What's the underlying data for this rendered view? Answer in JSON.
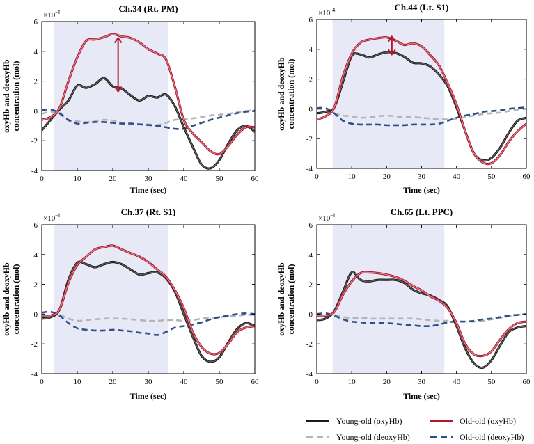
{
  "figure": {
    "legend": [
      {
        "label": "Young-old (oxyHb)",
        "color": "#1a1a1a",
        "dash": "solid"
      },
      {
        "label": "Old-old (oxyHb)",
        "color": "#b0182b",
        "dash": "solid"
      },
      {
        "label": "Young-old (deoxyHb)",
        "color": "#b4b4b4",
        "dash": "dashed"
      },
      {
        "label": "Old-old (deoxyHb)",
        "color": "#2e4f8a",
        "dash": "dashed"
      }
    ],
    "colors": {
      "shade": "#e8e9f6",
      "oxyYoung": "#1a1a1a",
      "oxyYoungInner": "#666666",
      "oxyOld": "#b0182b",
      "oxyOldInner": "#d8899a",
      "deoxyYoung": "#b4b4b4",
      "deoxyOld": "#2e4f8a",
      "arrow": "#b0182b"
    }
  },
  "chart_data": [
    {
      "type": "line",
      "title": "Ch.34 (Rt. PM)",
      "xlabel": "Time (sec)",
      "ylabel": "oxyHb and deoxyHb concentration (mol)",
      "exponent": "×10",
      "exponent_power": "-4",
      "xlim": [
        0,
        60
      ],
      "ylim": [
        -4,
        6
      ],
      "xticks": [
        0,
        10,
        20,
        30,
        40,
        50,
        60
      ],
      "yticks": [
        -4,
        -2,
        0,
        2,
        4,
        6
      ],
      "shaded_interval": [
        3.5,
        35.5
      ],
      "arrow": {
        "x": 21.5,
        "y_from": 1.3,
        "y_to": 4.9
      },
      "x": [
        0,
        2.5,
        5,
        7.5,
        10,
        12.5,
        15,
        17.5,
        20,
        22.5,
        25,
        27.5,
        30,
        32.5,
        35,
        37.5,
        40,
        42.5,
        45,
        47.5,
        50,
        52.5,
        55,
        57.5,
        60
      ],
      "series": [
        {
          "name": "Young-old (oxyHb)",
          "values": [
            -1.3,
            -0.6,
            0.1,
            0.7,
            1.7,
            1.55,
            1.8,
            2.2,
            1.65,
            1.5,
            1.05,
            0.7,
            1.0,
            0.9,
            1.1,
            0.3,
            -1.1,
            -2.4,
            -3.6,
            -3.85,
            -3.3,
            -2.2,
            -1.3,
            -1.0,
            -1.4
          ]
        },
        {
          "name": "Old-old (oxyHb)",
          "values": [
            -0.6,
            -0.4,
            0.2,
            2.0,
            3.6,
            4.7,
            4.8,
            4.95,
            5.15,
            5.0,
            4.9,
            4.6,
            4.15,
            3.85,
            3.45,
            1.6,
            -0.6,
            -1.5,
            -2.1,
            -2.7,
            -2.9,
            -2.35,
            -1.6,
            -1.1,
            -1.1
          ]
        },
        {
          "name": "Young-old (deoxyHb)",
          "values": [
            -0.2,
            -0.05,
            -0.2,
            -0.65,
            -0.7,
            -0.75,
            -0.7,
            -0.6,
            -0.65,
            -0.8,
            -0.85,
            -0.9,
            -0.9,
            -0.95,
            -0.8,
            -0.6,
            -0.55,
            -0.5,
            -0.4,
            -0.3,
            -0.25,
            -0.2,
            -0.1,
            0.0,
            0.05
          ]
        },
        {
          "name": "Old-old (deoxyHb)",
          "values": [
            0.05,
            0.1,
            -0.15,
            -0.6,
            -0.85,
            -0.8,
            -0.75,
            -0.75,
            -0.8,
            -0.85,
            -0.85,
            -0.9,
            -0.95,
            -1.0,
            -1.1,
            -1.2,
            -1.2,
            -1.0,
            -0.8,
            -0.6,
            -0.45,
            -0.3,
            -0.15,
            -0.05,
            0.0
          ]
        }
      ]
    },
    {
      "type": "line",
      "title": "Ch.44 (Lt. S1)",
      "xlabel": "Time (sec)",
      "ylabel": "oxyHb and deoxyHb concentration (mol)",
      "exponent": "×10",
      "exponent_power": "-4",
      "xlim": [
        0,
        60
      ],
      "ylim": [
        -4,
        6
      ],
      "xticks": [
        0,
        10,
        20,
        30,
        40,
        50,
        60
      ],
      "yticks": [
        -4,
        -2,
        0,
        2,
        4,
        6
      ],
      "shaded_interval": [
        4.5,
        36.5
      ],
      "arrow": {
        "x": 21.5,
        "y_from": 3.65,
        "y_to": 4.85
      },
      "x": [
        0,
        2.5,
        5,
        7.5,
        10,
        12.5,
        15,
        17.5,
        20,
        22.5,
        25,
        27.5,
        30,
        32.5,
        35,
        37.5,
        40,
        42.5,
        45,
        47.5,
        50,
        52.5,
        55,
        57.5,
        60
      ],
      "series": [
        {
          "name": "Young-old (oxyHb)",
          "values": [
            -0.3,
            -0.2,
            0.1,
            1.8,
            3.55,
            3.65,
            3.45,
            3.65,
            3.8,
            3.75,
            3.5,
            3.1,
            3.05,
            2.85,
            2.3,
            1.5,
            0.1,
            -1.5,
            -3.0,
            -3.45,
            -3.3,
            -2.6,
            -1.6,
            -0.8,
            -0.6
          ]
        },
        {
          "name": "Old-old (oxyHb)",
          "values": [
            -0.7,
            -0.5,
            0.1,
            2.2,
            3.7,
            4.45,
            4.65,
            4.75,
            4.8,
            4.6,
            4.3,
            4.4,
            4.2,
            3.6,
            2.9,
            1.7,
            0.3,
            -1.5,
            -3.0,
            -3.6,
            -3.65,
            -3.1,
            -2.2,
            -1.5,
            -1.0
          ]
        },
        {
          "name": "Young-old (deoxyHb)",
          "values": [
            0.0,
            -0.05,
            -0.3,
            -0.45,
            -0.5,
            -0.6,
            -0.55,
            -0.5,
            -0.45,
            -0.5,
            -0.55,
            -0.55,
            -0.6,
            -0.65,
            -0.7,
            -0.7,
            -0.65,
            -0.55,
            -0.45,
            -0.35,
            -0.3,
            -0.25,
            -0.15,
            -0.05,
            0.0
          ]
        },
        {
          "name": "Old-old (deoxyHb)",
          "values": [
            0.05,
            0.05,
            -0.3,
            -0.8,
            -1.0,
            -1.05,
            -1.05,
            -1.05,
            -1.1,
            -1.1,
            -1.1,
            -1.05,
            -1.05,
            -1.05,
            -1.0,
            -0.8,
            -0.6,
            -0.45,
            -0.35,
            -0.2,
            -0.15,
            -0.1,
            0.0,
            0.05,
            0.1
          ]
        }
      ]
    },
    {
      "type": "line",
      "title": "Ch.37 (Rt. S1)",
      "xlabel": "Time (sec)",
      "ylabel": "oxyHb and deoxyHb concentration (mol)",
      "exponent": "×10",
      "exponent_power": "-4",
      "xlim": [
        0,
        60
      ],
      "ylim": [
        -4,
        6
      ],
      "xticks": [
        0,
        10,
        20,
        30,
        40,
        50,
        60
      ],
      "yticks": [
        -4,
        -2,
        0,
        2,
        4,
        6
      ],
      "shaded_interval": [
        3.5,
        35.5
      ],
      "x": [
        0,
        2.5,
        5,
        7.5,
        10,
        12.5,
        15,
        17.5,
        20,
        22.5,
        25,
        27.5,
        30,
        32.5,
        35,
        37.5,
        40,
        42.5,
        45,
        47.5,
        50,
        52.5,
        55,
        57.5,
        60
      ],
      "series": [
        {
          "name": "Young-old (oxyHb)",
          "values": [
            -0.3,
            -0.2,
            0.3,
            2.3,
            3.45,
            3.35,
            3.15,
            3.35,
            3.5,
            3.35,
            3.0,
            2.65,
            2.75,
            2.8,
            2.4,
            1.5,
            0.0,
            -1.5,
            -2.8,
            -3.2,
            -2.9,
            -1.9,
            -1.0,
            -0.6,
            -0.8
          ]
        },
        {
          "name": "Old-old (oxyHb)",
          "values": [
            -0.1,
            -0.1,
            0.3,
            2.1,
            3.3,
            3.85,
            4.35,
            4.5,
            4.6,
            4.35,
            4.1,
            3.85,
            3.5,
            3.0,
            2.5,
            1.6,
            0.4,
            -1.2,
            -2.2,
            -2.65,
            -2.6,
            -2.0,
            -1.2,
            -0.9,
            -0.8
          ]
        },
        {
          "name": "Young-old (deoxyHb)",
          "values": [
            -0.1,
            -0.1,
            -0.05,
            -0.3,
            -0.45,
            -0.4,
            -0.35,
            -0.3,
            -0.3,
            -0.3,
            -0.35,
            -0.4,
            -0.45,
            -0.45,
            -0.4,
            -0.4,
            -0.45,
            -0.4,
            -0.3,
            -0.25,
            -0.2,
            -0.15,
            -0.1,
            -0.05,
            -0.05
          ]
        },
        {
          "name": "Old-old (deoxyHb)",
          "values": [
            0.1,
            0.15,
            -0.1,
            -0.6,
            -0.95,
            -1.05,
            -1.1,
            -1.1,
            -1.05,
            -1.1,
            -1.15,
            -1.25,
            -1.3,
            -1.4,
            -1.2,
            -0.9,
            -0.8,
            -0.7,
            -0.55,
            -0.35,
            -0.2,
            -0.1,
            0.0,
            0.05,
            0.0
          ]
        }
      ]
    },
    {
      "type": "line",
      "title": "Ch.65 (Lt. PPC)",
      "xlabel": "Time (sec)",
      "ylabel": "oxyHb and deoxyHb concentration (mol)",
      "exponent": "×10",
      "exponent_power": "-4",
      "xlim": [
        0,
        60
      ],
      "ylim": [
        -4,
        6
      ],
      "xticks": [
        0,
        10,
        20,
        30,
        40,
        50,
        60
      ],
      "yticks": [
        -4,
        -2,
        0,
        2,
        4,
        6
      ],
      "shaded_interval": [
        4.5,
        36.5
      ],
      "x": [
        0,
        2.5,
        5,
        7.5,
        10,
        12.5,
        15,
        17.5,
        20,
        22.5,
        25,
        27.5,
        30,
        32.5,
        35,
        37.5,
        40,
        42.5,
        45,
        47.5,
        50,
        52.5,
        55,
        57.5,
        60
      ],
      "series": [
        {
          "name": "Young-old (oxyHb)",
          "values": [
            -0.4,
            -0.3,
            0.2,
            1.5,
            2.8,
            2.3,
            2.2,
            2.3,
            2.3,
            2.3,
            2.1,
            1.65,
            1.4,
            1.25,
            0.95,
            0.5,
            -0.8,
            -2.3,
            -3.3,
            -3.6,
            -3.1,
            -2.1,
            -1.2,
            -0.9,
            -0.8
          ]
        },
        {
          "name": "Old-old (oxyHb)",
          "values": [
            -0.1,
            -0.1,
            0.15,
            1.3,
            2.2,
            2.75,
            2.8,
            2.75,
            2.65,
            2.5,
            2.25,
            1.9,
            1.6,
            1.2,
            0.9,
            0.4,
            -0.6,
            -2.0,
            -2.7,
            -2.8,
            -2.5,
            -1.7,
            -1.0,
            -0.6,
            -0.5
          ]
        },
        {
          "name": "Young-old (deoxyHb)",
          "values": [
            0.0,
            -0.05,
            -0.05,
            -0.2,
            -0.25,
            -0.25,
            -0.3,
            -0.3,
            -0.3,
            -0.3,
            -0.3,
            -0.3,
            -0.35,
            -0.4,
            -0.45,
            -0.45,
            -0.5,
            -0.5,
            -0.5,
            -0.45,
            -0.35,
            -0.25,
            -0.15,
            -0.05,
            0.0
          ]
        },
        {
          "name": "Old-old (deoxyHb)",
          "values": [
            0.0,
            0.05,
            -0.1,
            -0.35,
            -0.5,
            -0.55,
            -0.6,
            -0.6,
            -0.6,
            -0.65,
            -0.7,
            -0.75,
            -0.8,
            -0.8,
            -0.7,
            -0.55,
            -0.5,
            -0.5,
            -0.45,
            -0.35,
            -0.3,
            -0.2,
            -0.1,
            -0.05,
            0.0
          ]
        }
      ]
    }
  ]
}
